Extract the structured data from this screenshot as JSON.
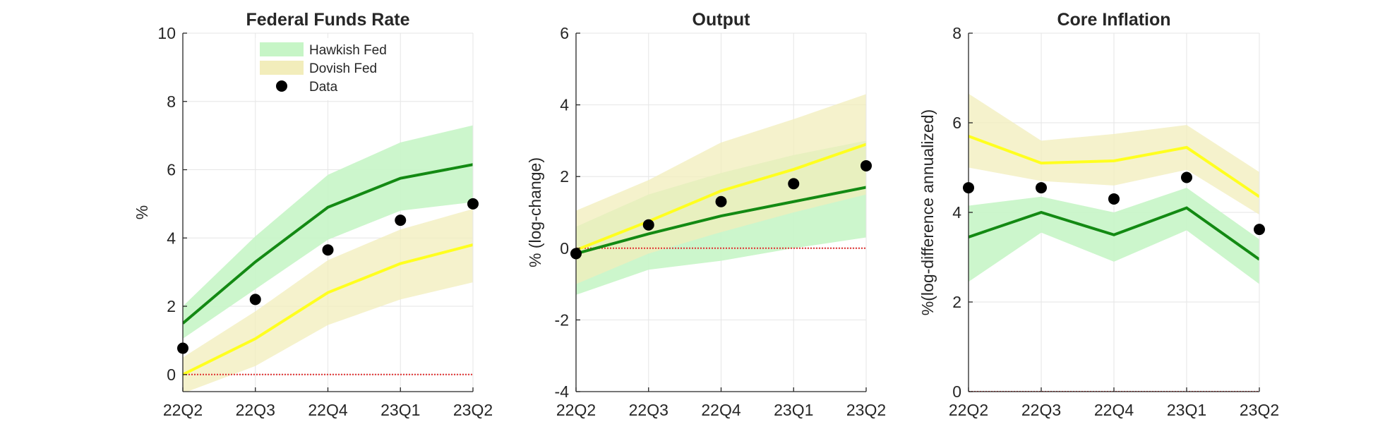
{
  "figure": {
    "legend": {
      "placement": "top-center of first panel",
      "entries": [
        {
          "label": "Hawkish Fed",
          "style": "band",
          "color": "#c6f5c6"
        },
        {
          "label": "Dovish Fed",
          "style": "band",
          "color": "#f2edbb"
        },
        {
          "label": "Data",
          "style": "marker",
          "color": "#000000"
        }
      ]
    },
    "colors": {
      "hawkish_line": "#138a13",
      "hawkish_band": "#c6f5c6",
      "dovish_line": "#ffff1f",
      "dovish_band": "#f2edbb",
      "data_marker": "#000000",
      "zero_line": "#e03030",
      "grid": "#e6e6e6"
    }
  },
  "chart_data": [
    {
      "type": "line",
      "title": "Federal Funds Rate",
      "xlabel": "",
      "ylabel": "%",
      "categories": [
        "22Q2",
        "22Q3",
        "22Q4",
        "23Q1",
        "23Q2"
      ],
      "ylim": [
        -0.5,
        10
      ],
      "yticks": [
        0,
        2,
        4,
        6,
        8,
        10
      ],
      "grid": true,
      "zero_line": true,
      "series": [
        {
          "name": "Hawkish Fed",
          "values": [
            1.5,
            3.3,
            4.9,
            5.75,
            6.15
          ],
          "band_upper": [
            2.0,
            4.05,
            5.85,
            6.8,
            7.3
          ],
          "band_lower": [
            1.05,
            2.5,
            3.95,
            4.8,
            5.05
          ]
        },
        {
          "name": "Dovish Fed",
          "values": [
            0.0,
            1.05,
            2.4,
            3.25,
            3.8
          ],
          "band_upper": [
            0.5,
            1.85,
            3.35,
            4.25,
            4.85
          ],
          "band_lower": [
            -0.55,
            0.25,
            1.45,
            2.2,
            2.7
          ]
        },
        {
          "name": "Data",
          "values": [
            0.77,
            2.2,
            3.65,
            4.52,
            5.0
          ]
        }
      ]
    },
    {
      "type": "line",
      "title": "Output",
      "xlabel": "",
      "ylabel": "% (log-change)",
      "categories": [
        "22Q2",
        "22Q3",
        "22Q4",
        "23Q1",
        "23Q2"
      ],
      "ylim": [
        -4,
        6
      ],
      "yticks": [
        -4,
        -2,
        0,
        2,
        4,
        6
      ],
      "grid": true,
      "zero_line": true,
      "series": [
        {
          "name": "Hawkish Fed",
          "values": [
            -0.15,
            0.4,
            0.9,
            1.3,
            1.7
          ],
          "band_upper": [
            0.6,
            1.5,
            2.1,
            2.6,
            3.0
          ],
          "band_lower": [
            -1.3,
            -0.6,
            -0.35,
            0.0,
            0.3
          ]
        },
        {
          "name": "Dovish Fed",
          "values": [
            -0.05,
            0.75,
            1.6,
            2.2,
            2.9
          ],
          "band_upper": [
            1.05,
            1.9,
            2.95,
            3.6,
            4.3
          ],
          "band_lower": [
            -1.0,
            -0.15,
            0.45,
            1.0,
            1.5
          ]
        },
        {
          "name": "Data",
          "values": [
            -0.15,
            0.65,
            1.3,
            1.8,
            2.3
          ]
        }
      ]
    },
    {
      "type": "line",
      "title": "Core Inflation",
      "xlabel": "",
      "ylabel": "%(log-difference annualized)",
      "categories": [
        "22Q2",
        "22Q3",
        "22Q4",
        "23Q1",
        "23Q2"
      ],
      "ylim": [
        0,
        8
      ],
      "yticks": [
        0,
        2,
        4,
        6,
        8
      ],
      "grid": true,
      "zero_line": true,
      "series": [
        {
          "name": "Hawkish Fed",
          "values": [
            3.45,
            4.0,
            3.5,
            4.1,
            2.95
          ],
          "band_upper": [
            4.15,
            4.35,
            4.0,
            4.55,
            3.4
          ],
          "band_lower": [
            2.45,
            3.55,
            2.9,
            3.6,
            2.4
          ]
        },
        {
          "name": "Dovish Fed",
          "values": [
            5.7,
            5.1,
            5.15,
            5.45,
            4.35
          ],
          "band_upper": [
            6.65,
            5.6,
            5.75,
            5.95,
            4.9
          ],
          "band_lower": [
            5.0,
            4.7,
            4.6,
            4.95,
            3.95
          ]
        },
        {
          "name": "Data",
          "values": [
            4.55,
            4.55,
            4.3,
            4.78,
            3.62
          ]
        }
      ]
    }
  ]
}
